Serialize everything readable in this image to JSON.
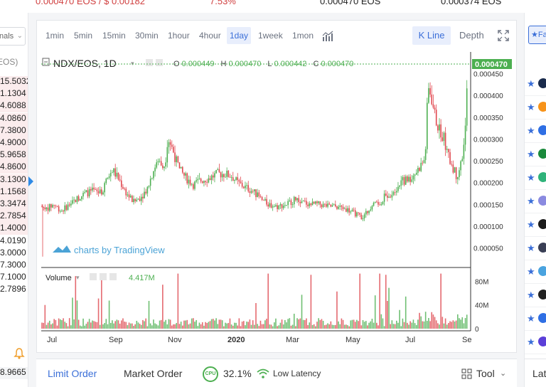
{
  "ticker": {
    "left_text": "0.000470 EOS / $ 0.00182",
    "change": "7.53%",
    "mid_text": "0.000470 EOS",
    "right_text": "0.000374 EOS"
  },
  "orderbook": {
    "select_label": "nals",
    "header": "(EOS)",
    "rows": [
      "15.5032",
      "1.1304",
      "4.6088",
      "4.0860",
      "7.3800",
      "4.9000",
      "5.9658",
      "4.8600",
      "3.1300",
      "1.1568",
      "3.3474",
      "2.7854",
      "1.4000",
      "4.0190",
      "3.0000",
      "7.3000",
      "7.1000",
      "2.7896"
    ],
    "last_value": "8.9665"
  },
  "toolbar": {
    "timeframes": [
      "1min",
      "5min",
      "15min",
      "30min",
      "1hour",
      "4hour",
      "1day",
      "1week",
      "1mon"
    ],
    "active": "1day",
    "kline_label": "K Line",
    "depth_label": "Depth"
  },
  "chart_header": {
    "symbol": "NDX/EOS, 1D",
    "o_label": "O",
    "o_value": "0.000449",
    "h_label": "H",
    "h_value": "0.000470",
    "l_label": "L",
    "l_value": "0.000442",
    "c_label": "C",
    "c_value": "0.000470",
    "watermark": "charts by TradingView",
    "volume_label": "Volume",
    "volume_value": "4.417M",
    "last_price_tag": "0.000470"
  },
  "chart_data": {
    "type": "candlestick",
    "price_axis": {
      "ticks": [
        "0.000450",
        "0.000400",
        "0.000350",
        "0.000300",
        "0.000250",
        "0.000200",
        "0.000150",
        "0.000100",
        "0.000050"
      ],
      "min": 1e-05,
      "max": 0.00049
    },
    "volume_axis": {
      "ticks": [
        "80M",
        "40M",
        "0"
      ],
      "max": 95000000
    },
    "time_axis": [
      "Jul",
      "Sep",
      "Nov",
      "2020",
      "Mar",
      "May",
      "Jul",
      "Se"
    ],
    "close_path": [
      [
        0,
        0.000145
      ],
      [
        8,
        0.00014
      ],
      [
        18,
        0.00015
      ],
      [
        28,
        0.000135
      ],
      [
        40,
        0.00015
      ],
      [
        52,
        0.000165
      ],
      [
        62,
        0.000175
      ],
      [
        72,
        0.00018
      ],
      [
        84,
        0.000175
      ],
      [
        92,
        0.000205
      ],
      [
        100,
        0.00023
      ],
      [
        110,
        0.000205
      ],
      [
        120,
        0.000175
      ],
      [
        130,
        0.000155
      ],
      [
        142,
        0.00017
      ],
      [
        150,
        0.00019
      ],
      [
        158,
        0.00023
      ],
      [
        166,
        0.00025
      ],
      [
        174,
        0.00024
      ],
      [
        178,
        0.000305
      ],
      [
        186,
        0.00027
      ],
      [
        194,
        0.00023
      ],
      [
        204,
        0.00021
      ],
      [
        214,
        0.000195
      ],
      [
        224,
        0.000205
      ],
      [
        236,
        0.00021
      ],
      [
        248,
        0.00022
      ],
      [
        258,
        0.00022
      ],
      [
        268,
        0.000215
      ],
      [
        276,
        0.0002
      ],
      [
        286,
        0.00019
      ],
      [
        298,
        0.00018
      ],
      [
        310,
        0.00016
      ],
      [
        320,
        0.00015
      ],
      [
        332,
        0.000145
      ],
      [
        344,
        0.00015
      ],
      [
        356,
        0.00016
      ],
      [
        368,
        0.000155
      ],
      [
        380,
        0.00015
      ],
      [
        392,
        0.00015
      ],
      [
        404,
        0.000145
      ],
      [
        416,
        0.000145
      ],
      [
        428,
        0.00014
      ],
      [
        440,
        0.00013
      ],
      [
        452,
        0.00012
      ],
      [
        460,
        0.000135
      ],
      [
        468,
        0.00016
      ],
      [
        476,
        0.00015
      ],
      [
        484,
        0.00017
      ],
      [
        492,
        0.000175
      ],
      [
        500,
        0.00019
      ],
      [
        510,
        0.000205
      ],
      [
        520,
        0.00021
      ],
      [
        530,
        0.00023
      ],
      [
        540,
        0.000255
      ],
      [
        544,
        0.000415
      ],
      [
        548,
        0.000405
      ],
      [
        554,
        0.00035
      ],
      [
        560,
        0.00032
      ],
      [
        566,
        0.000305
      ],
      [
        572,
        0.00026
      ],
      [
        578,
        0.00024
      ],
      [
        584,
        0.000215
      ],
      [
        590,
        0.00024
      ],
      [
        596,
        0.0003
      ],
      [
        600,
        0.00047
      ]
    ]
  },
  "favorites": {
    "button_label": "Fa",
    "coin_colors": [
      "#1a2b4c",
      "#f7931a",
      "#2f6fe4",
      "#1b8a3c",
      "#2fb37a",
      "#8a8ae0",
      "#1b1b1b",
      "#3a3f55",
      "#4aa3df",
      "#222222",
      "#2f6fe4",
      "#5b3fd8"
    ]
  },
  "bottom": {
    "limit_order": "Limit Order",
    "market_order": "Market Order",
    "cpu_label": "CPU",
    "cpu_value": "32.1%",
    "latency": "Low Latency",
    "tool": "Tool",
    "right_tab": "Lat"
  },
  "colors": {
    "up": "#4caf50",
    "down": "#e0484f",
    "accent": "#3b6fd8"
  }
}
